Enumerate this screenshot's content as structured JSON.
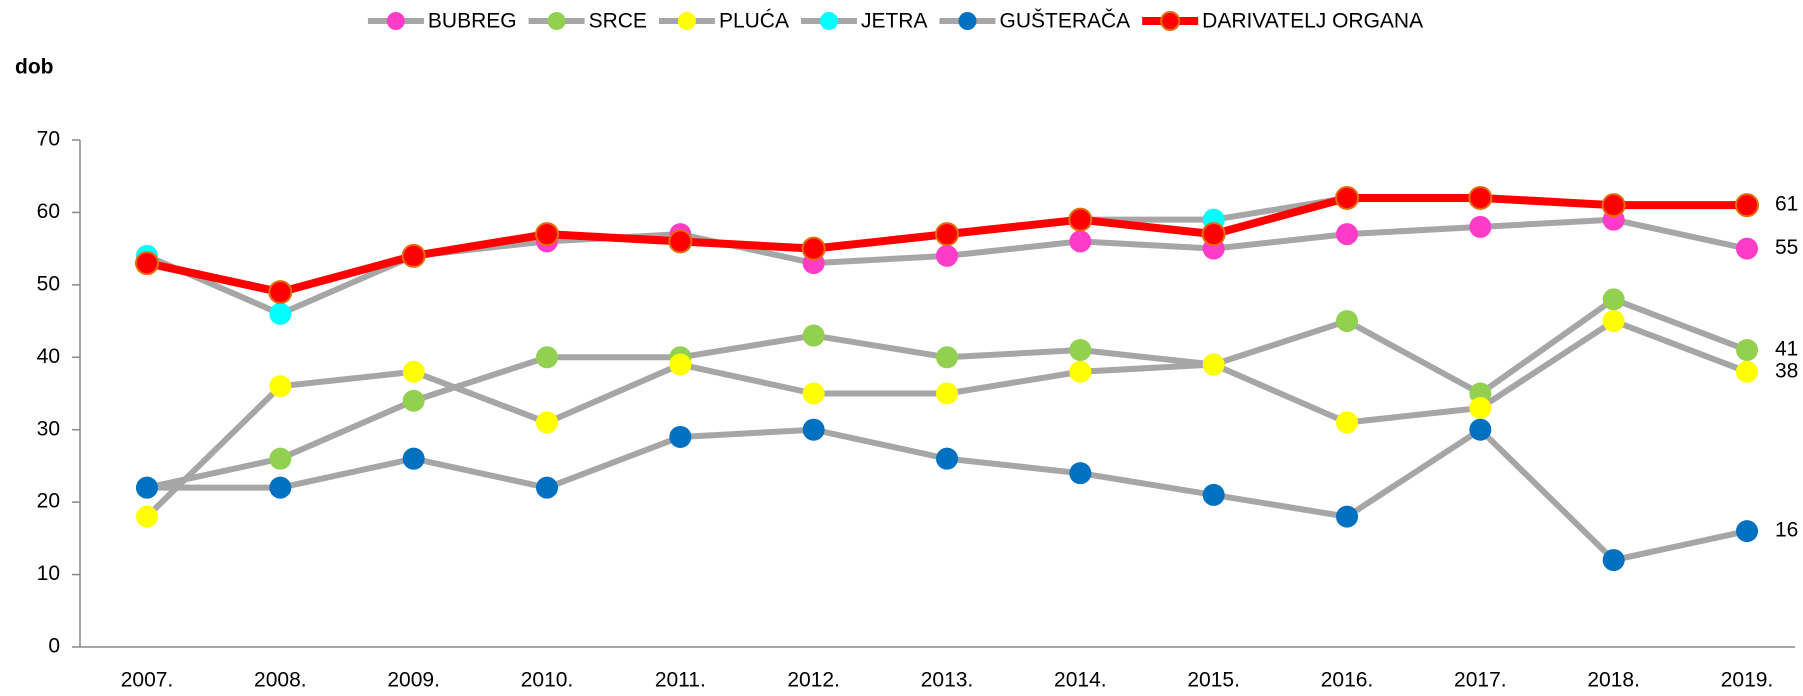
{
  "chart_data": {
    "type": "line",
    "y_label": "dob",
    "categories": [
      "2007.",
      "2008.",
      "2009.",
      "2010.",
      "2011.",
      "2012.",
      "2013.",
      "2014.",
      "2015.",
      "2016.",
      "2017.",
      "2018.",
      "2019."
    ],
    "ylim": [
      0,
      70
    ],
    "yticks": [
      0,
      10,
      20,
      30,
      40,
      50,
      60,
      70
    ],
    "grid": false,
    "legend": "top",
    "series": [
      {
        "name": "BUBREG",
        "color": "#ff3cc8",
        "line_color": "#a6a6a6",
        "show_last_label": true,
        "values": [
          53,
          49,
          54,
          56,
          57,
          53,
          54,
          56,
          55,
          57,
          58,
          59,
          55
        ]
      },
      {
        "name": "SRCE",
        "color": "#92d050",
        "line_color": "#a6a6a6",
        "show_last_label": true,
        "values": [
          22,
          26,
          34,
          40,
          40,
          43,
          40,
          41,
          39,
          45,
          35,
          48,
          41
        ]
      },
      {
        "name": "PLUĆA",
        "color": "#ffff00",
        "line_color": "#a6a6a6",
        "show_last_label": true,
        "values": [
          18,
          36,
          38,
          31,
          39,
          35,
          35,
          38,
          39,
          31,
          33,
          45,
          38
        ]
      },
      {
        "name": "JETRA",
        "color": "#00ffff",
        "line_color": "#a6a6a6",
        "show_last_label": false,
        "values": [
          54,
          46,
          54,
          57,
          56,
          55,
          57,
          59,
          59,
          62,
          62,
          61,
          61
        ]
      },
      {
        "name": "GUŠTERAČA",
        "color": "#0070c0",
        "line_color": "#a6a6a6",
        "show_last_label": true,
        "values": [
          22,
          22,
          26,
          22,
          29,
          30,
          26,
          24,
          21,
          18,
          30,
          12,
          16
        ]
      },
      {
        "name": "DARIVATELJ ORGANA",
        "color": "#ff0000",
        "line_color": "#ff0000",
        "show_last_label": true,
        "values": [
          53,
          49,
          54,
          57,
          56,
          55,
          57,
          59,
          57,
          62,
          62,
          61,
          61
        ]
      }
    ]
  }
}
